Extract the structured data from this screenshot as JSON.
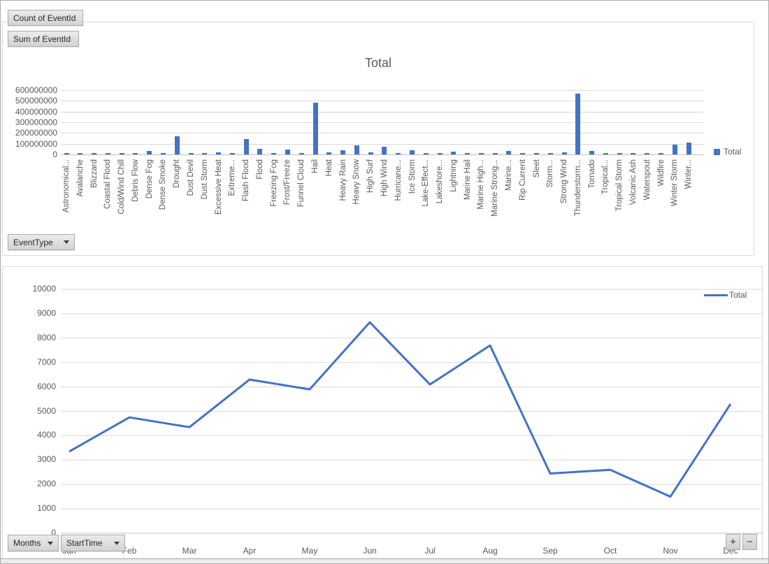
{
  "field_buttons": {
    "count_of_eventid": "Count of EventId",
    "sum_of_eventid": "Sum of EventId",
    "event_type": "EventType",
    "months": "Months",
    "start_time": "StartTime",
    "expand": "+",
    "collapse": "−"
  },
  "colors": {
    "series": "#4472C4",
    "axis_text": "#595959",
    "gridline": "#D9D9D9",
    "axis_line": "#BFBFBF"
  },
  "chart_data": [
    {
      "type": "bar",
      "title": "Total",
      "legend": "Total",
      "legend_position": "right",
      "ylim": [
        0,
        600000000
      ],
      "ytick_labels": [
        "600000000",
        "500000000",
        "400000000",
        "300000000",
        "200000000",
        "100000000",
        "0"
      ],
      "gridlines": true,
      "categories": [
        "Astronomical...",
        "Avalanche",
        "Blizzard",
        "Coastal Flood",
        "Cold/Wind Chill",
        "Debris Flow",
        "Dense Fog",
        "Dense Smoke",
        "Drought",
        "Dust Devil",
        "Dust Storm",
        "Excessive Heat",
        "Extreme...",
        "Flash Flood",
        "Flood",
        "Freezing Fog",
        "Frost/Freeze",
        "Funnel Cloud",
        "Hail",
        "Heat",
        "Heavy Rain",
        "Heavy Snow",
        "High Surf",
        "High Wind",
        "Hurricane...",
        "Ice Storm",
        "Lake-Effect...",
        "Lakeshore...",
        "Lightning",
        "Marine Hail",
        "Marine High...",
        "Marine Strong...",
        "Marine...",
        "Rip Current",
        "Sleet",
        "Storm...",
        "Strong Wind",
        "Thunderstorm...",
        "Tornado",
        "Tropical...",
        "Tropical Storm",
        "Volcanic Ash",
        "Waterspout",
        "Wildfire",
        "Winter Storm",
        "Winter..."
      ],
      "values": [
        8000000,
        6000000,
        10000000,
        10000000,
        7000000,
        7000000,
        30000000,
        5000000,
        170000000,
        7000000,
        7000000,
        20000000,
        10000000,
        145000000,
        55000000,
        8000000,
        45000000,
        12000000,
        480000000,
        22000000,
        40000000,
        85000000,
        20000000,
        72000000,
        7000000,
        38000000,
        7000000,
        6000000,
        28000000,
        8000000,
        8000000,
        10000000,
        35000000,
        9000000,
        9000000,
        11000000,
        22000000,
        565000000,
        33000000,
        9000000,
        6000000,
        4000000,
        6000000,
        13000000,
        92000000,
        108000000
      ]
    },
    {
      "type": "line",
      "title": "",
      "legend": "Total",
      "legend_position": "top-right",
      "ylim": [
        0,
        10000
      ],
      "ytick_labels": [
        "10000",
        "9000",
        "8000",
        "7000",
        "6000",
        "5000",
        "4000",
        "3000",
        "2000",
        "1000",
        "0"
      ],
      "gridlines": true,
      "categories": [
        "Jan",
        "Feb",
        "Mar",
        "Apr",
        "May",
        "Jun",
        "Jul",
        "Aug",
        "Sep",
        "Oct",
        "Nov",
        "Dec"
      ],
      "values": [
        3350,
        4750,
        4350,
        6300,
        5900,
        8650,
        6100,
        7700,
        2450,
        2600,
        1500,
        5300
      ]
    }
  ]
}
